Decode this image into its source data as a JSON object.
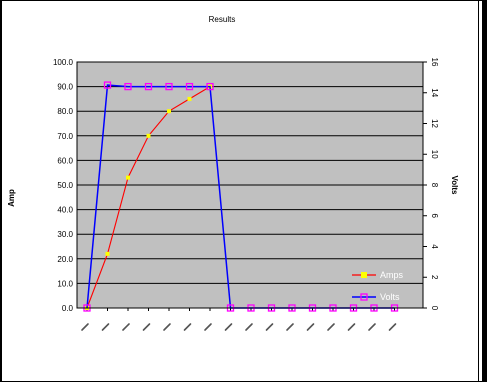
{
  "chart_data": {
    "type": "line",
    "title": "Results",
    "ylabel": "Amp",
    "y2label": "Volts",
    "ylim": [
      0,
      100
    ],
    "y2lim": [
      0,
      16
    ],
    "yticks": [
      "0.0",
      "10.0",
      "20.0",
      "30.0",
      "40.0",
      "50.0",
      "60.0",
      "70.0",
      "80.0",
      "90.0",
      "100.0"
    ],
    "y2ticks": [
      "0",
      "2",
      "4",
      "6",
      "8",
      "10",
      "12",
      "14",
      "16"
    ],
    "grid": true,
    "background": "#c0c0c0",
    "legend_position": "bottom-right",
    "series": [
      {
        "name": "Amps",
        "axis": "left",
        "color": "#ff0000",
        "marker_color": "#ffff00",
        "points": [
          {
            "x": 0,
            "y": 0
          },
          {
            "x": 1,
            "y": 22
          },
          {
            "x": 2,
            "y": 53
          },
          {
            "x": 3,
            "y": 70
          },
          {
            "x": 4,
            "y": 80
          },
          {
            "x": 5,
            "y": 85
          },
          {
            "x": 6,
            "y": 90
          }
        ]
      },
      {
        "name": "Volts",
        "axis": "right",
        "color": "#0000ff",
        "marker_color": "#ff00ff",
        "points": [
          {
            "x": 0,
            "y": 0
          },
          {
            "x": 1,
            "y": 14.5
          },
          {
            "x": 2,
            "y": 14.4
          },
          {
            "x": 3,
            "y": 14.4
          },
          {
            "x": 4,
            "y": 14.4
          },
          {
            "x": 5,
            "y": 14.4
          },
          {
            "x": 6,
            "y": 14.4
          },
          {
            "x": 7,
            "y": 0
          },
          {
            "x": 8,
            "y": 0
          },
          {
            "x": 9,
            "y": 0
          },
          {
            "x": 10,
            "y": 0
          },
          {
            "x": 11,
            "y": 0
          },
          {
            "x": 12,
            "y": 0
          },
          {
            "x": 13,
            "y": 0
          },
          {
            "x": 14,
            "y": 0
          },
          {
            "x": 15,
            "y": 0
          }
        ]
      }
    ]
  }
}
